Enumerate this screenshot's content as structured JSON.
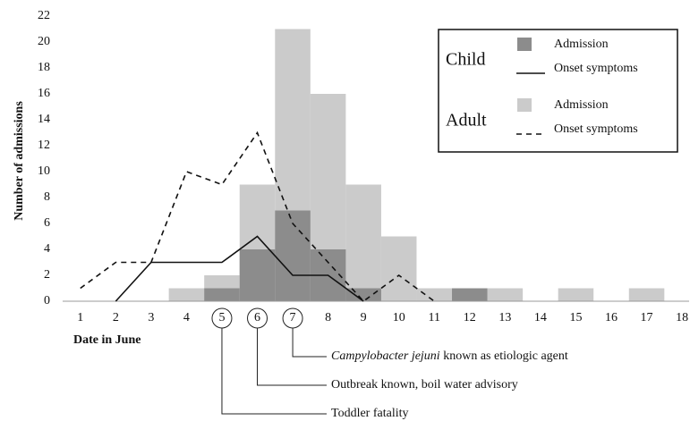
{
  "chart_data": {
    "type": "bar-line",
    "x_label": "Date in June",
    "y_label": "Number of admissions",
    "x": [
      1,
      2,
      3,
      4,
      5,
      6,
      7,
      8,
      9,
      10,
      11,
      12,
      13,
      14,
      15,
      16,
      17,
      18
    ],
    "xlim": [
      0.5,
      18.2
    ],
    "xticks": [
      1,
      2,
      3,
      4,
      5,
      6,
      7,
      8,
      9,
      10,
      11,
      12,
      13,
      14,
      15,
      16,
      17,
      18
    ],
    "ylim": [
      0,
      22
    ],
    "yticks": [
      0,
      2,
      4,
      6,
      8,
      10,
      12,
      14,
      16,
      18,
      20,
      22
    ],
    "legend": "upper right",
    "groups": [
      {
        "name": "Child",
        "series": [
          {
            "name": "Admission",
            "type": "bar",
            "color": "#8c8c8c",
            "values": [
              null,
              null,
              null,
              null,
              1,
              4,
              7,
              4,
              1,
              null,
              null,
              1,
              null,
              null,
              null,
              null,
              null,
              null
            ]
          },
          {
            "name": "Onset symptoms",
            "type": "line",
            "dash": false,
            "color": "#111111",
            "values": [
              null,
              0,
              3,
              3,
              3,
              5,
              2,
              2,
              0,
              null,
              null,
              null,
              null,
              null,
              null,
              null,
              null,
              null
            ]
          }
        ]
      },
      {
        "name": "Adult",
        "series": [
          {
            "name": "Admission",
            "type": "bar",
            "color": "#cbcbcb",
            "values": [
              null,
              null,
              null,
              1,
              2,
              9,
              21,
              16,
              9,
              5,
              1,
              null,
              1,
              null,
              1,
              null,
              1,
              null
            ]
          },
          {
            "name": "Onset symptoms",
            "type": "line",
            "dash": true,
            "color": "#111111",
            "values": [
              1,
              3,
              3,
              10,
              9,
              13,
              6,
              3,
              0,
              2,
              0,
              null,
              null,
              null,
              null,
              null,
              null,
              null
            ]
          }
        ]
      }
    ],
    "annotations": [
      {
        "x": 7,
        "text": [
          "Campylobacter jejuni",
          " known as etiologic agent"
        ]
      },
      {
        "x": 6,
        "text": [
          "Outbreak known, boil water advisory"
        ]
      },
      {
        "x": 5,
        "text": [
          "Toddler fatality"
        ]
      }
    ]
  }
}
